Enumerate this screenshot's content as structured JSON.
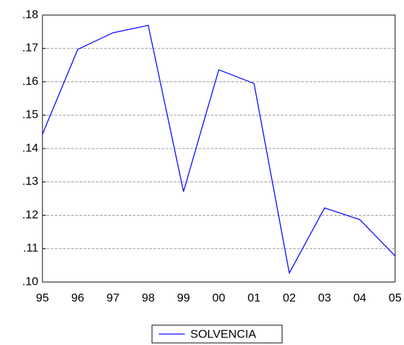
{
  "chart_data": {
    "type": "line",
    "categories": [
      "95",
      "96",
      "97",
      "98",
      "99",
      "00",
      "01",
      "02",
      "03",
      "04",
      "05"
    ],
    "series": [
      {
        "name": "SOLVENCIA",
        "color": "#0000ff",
        "values": [
          0.1443,
          0.1697,
          0.1747,
          0.1769,
          0.1271,
          0.1636,
          0.1595,
          0.1027,
          0.1222,
          0.1187,
          0.1078
        ]
      }
    ],
    "ylim": [
      0.1,
      0.18
    ],
    "yticks": [
      {
        "value": 0.1,
        "label": ".10"
      },
      {
        "value": 0.11,
        "label": ".11"
      },
      {
        "value": 0.12,
        "label": ".12"
      },
      {
        "value": 0.13,
        "label": ".13"
      },
      {
        "value": 0.14,
        "label": ".14"
      },
      {
        "value": 0.15,
        "label": ".15"
      },
      {
        "value": 0.16,
        "label": ".16"
      },
      {
        "value": 0.17,
        "label": ".17"
      },
      {
        "value": 0.18,
        "label": ".18"
      }
    ],
    "grid": true,
    "legend": "bottom"
  }
}
